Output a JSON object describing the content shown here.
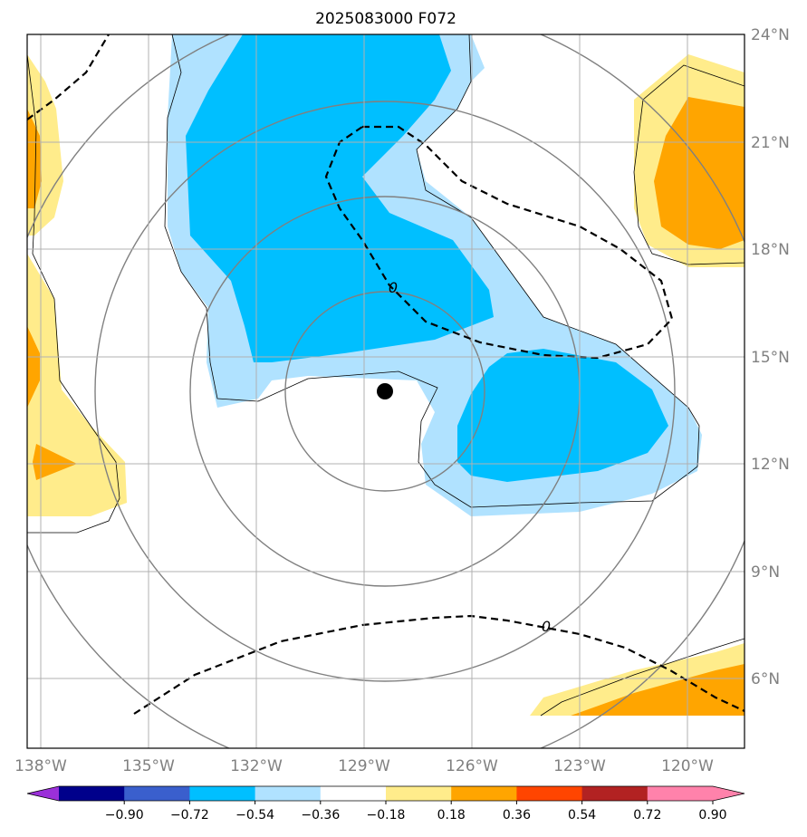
{
  "chart_data": {
    "type": "map",
    "title": "2025083000 F072",
    "lon_ticks": [
      "138°W",
      "135°W",
      "132°W",
      "129°W",
      "126°W",
      "123°W",
      "120°W"
    ],
    "lon_values": [
      -138,
      -135,
      -132,
      -129,
      -126,
      -123,
      -120
    ],
    "lat_ticks": [
      "24°N",
      "21°N",
      "18°N",
      "15°N",
      "12°N",
      "9°N",
      "6°N"
    ],
    "lat_values": [
      24,
      21,
      18,
      15,
      12,
      9,
      6
    ],
    "extent": {
      "lon_min": -138.4,
      "lon_max": -118.4,
      "lat_min": 4,
      "lat_max": 24
    },
    "storm_center": {
      "lon": -128.5,
      "lat": 14
    },
    "contour_label": "0",
    "colorbar": {
      "ticks": [
        "−0.90",
        "−0.72",
        "−0.54",
        "−0.36",
        "−0.18",
        "0.18",
        "0.36",
        "0.54",
        "0.72",
        "0.90"
      ],
      "colors": [
        "#9b30d9",
        "#00008b",
        "#3a5fcd",
        "#00bfff",
        "#b0e2ff",
        "#ffffff",
        "#ffec8b",
        "#ffa500",
        "#ff4500",
        "#b22222",
        "#ff82ab",
        "#ff82ab"
      ]
    },
    "colors": {
      "neg_light": "#b0e2ff",
      "neg_mid": "#00bfff",
      "pos_light": "#ffec8b",
      "pos_mid": "#ffa500",
      "grid": "#b0b0b0",
      "ring": "#808080"
    }
  }
}
